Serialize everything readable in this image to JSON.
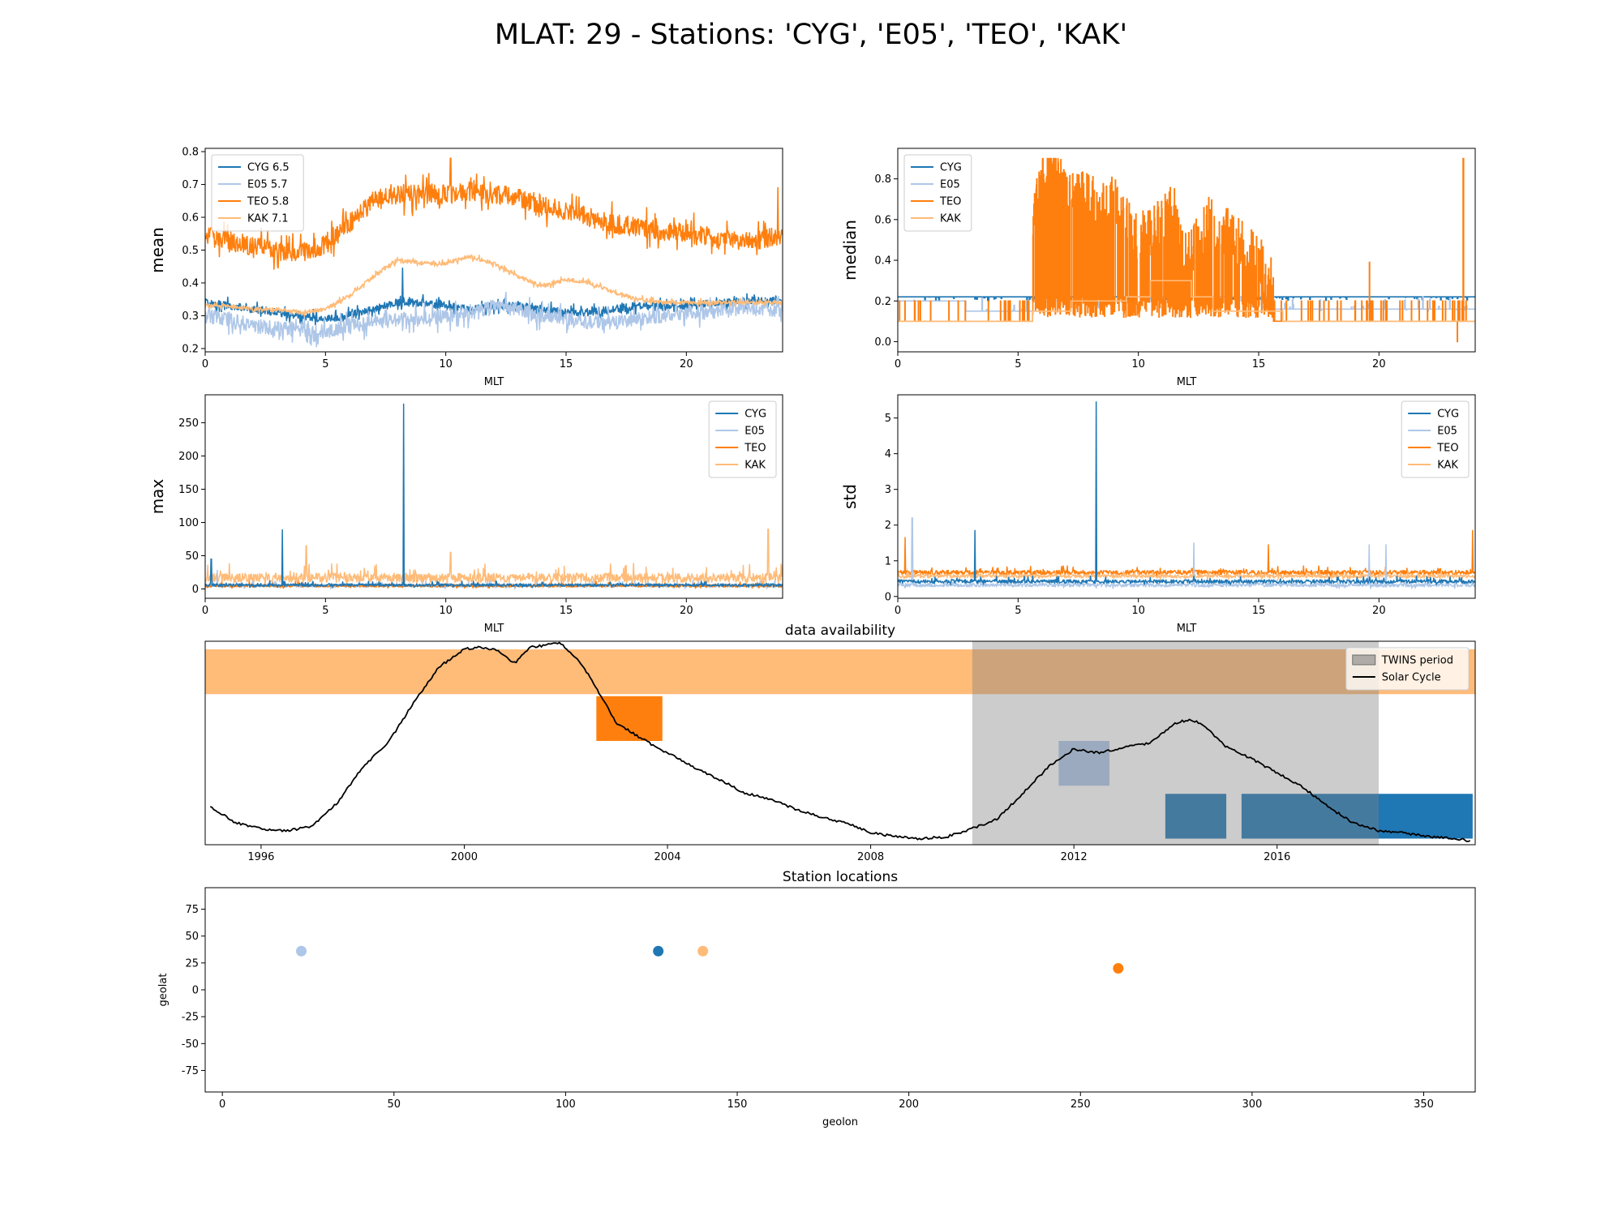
{
  "figure": {
    "title": "MLAT: 29 - Stations: 'CYG', 'E05', 'TEO', 'KAK'",
    "colors": {
      "CYG": "#1f77b4",
      "E05": "#aec7e8",
      "TEO": "#ff7f0e",
      "KAK": "#ffbb78",
      "twins": "#a9a9a9",
      "solar": "#000000"
    }
  },
  "chart_data": [
    {
      "id": "mean",
      "type": "line",
      "xlabel": "MLT",
      "ylabel": "mean",
      "xlim": [
        0,
        24
      ],
      "ylim": [
        0.19,
        0.81
      ],
      "xticks": [
        0,
        5,
        10,
        15,
        20
      ],
      "yticks": [
        0.2,
        0.3,
        0.4,
        0.5,
        0.6,
        0.7,
        0.8
      ],
      "legend_position": "upper-left",
      "legend": [
        "CYG 6.5",
        "E05 5.7",
        "TEO 5.8",
        "KAK 7.1"
      ],
      "series": [
        {
          "name": "CYG 6.5",
          "color": "#1f77b4",
          "x": [
            0,
            1,
            2,
            3,
            4,
            5,
            6,
            7,
            8,
            9,
            10,
            11,
            12,
            13,
            14,
            15,
            16,
            17,
            18,
            19,
            20,
            21,
            22,
            23,
            24
          ],
          "y": [
            0.34,
            0.33,
            0.32,
            0.31,
            0.3,
            0.29,
            0.3,
            0.32,
            0.34,
            0.34,
            0.33,
            0.32,
            0.33,
            0.33,
            0.32,
            0.31,
            0.31,
            0.32,
            0.33,
            0.33,
            0.33,
            0.34,
            0.34,
            0.35,
            0.34
          ],
          "noise": 0.012,
          "spikes": [
            [
              8.2,
              0.445
            ]
          ]
        },
        {
          "name": "E05 5.7",
          "color": "#aec7e8",
          "x": [
            0,
            1,
            2,
            3,
            4,
            5,
            6,
            7,
            8,
            9,
            10,
            11,
            12,
            13,
            14,
            15,
            16,
            17,
            18,
            19,
            20,
            21,
            22,
            23,
            24
          ],
          "y": [
            0.3,
            0.29,
            0.27,
            0.26,
            0.26,
            0.25,
            0.27,
            0.28,
            0.29,
            0.29,
            0.3,
            0.31,
            0.33,
            0.32,
            0.3,
            0.29,
            0.28,
            0.28,
            0.29,
            0.3,
            0.31,
            0.31,
            0.32,
            0.32,
            0.32
          ],
          "noise": 0.022,
          "spikes": []
        },
        {
          "name": "TEO 5.8",
          "color": "#ff7f0e",
          "x": [
            0,
            1,
            2,
            3,
            4,
            5,
            6,
            7,
            8,
            9,
            10,
            11,
            12,
            13,
            14,
            15,
            16,
            17,
            18,
            19,
            20,
            21,
            22,
            23,
            24
          ],
          "y": [
            0.55,
            0.53,
            0.51,
            0.5,
            0.49,
            0.52,
            0.58,
            0.65,
            0.67,
            0.67,
            0.67,
            0.68,
            0.67,
            0.66,
            0.64,
            0.62,
            0.6,
            0.58,
            0.57,
            0.56,
            0.55,
            0.54,
            0.53,
            0.53,
            0.55
          ],
          "noise": 0.03,
          "spikes": [
            [
              10.2,
              0.78
            ],
            [
              23.8,
              0.69
            ]
          ]
        },
        {
          "name": "KAK 7.1",
          "color": "#ffbb78",
          "x": [
            0,
            1,
            2,
            3,
            4,
            5,
            6,
            7,
            8,
            9,
            10,
            11,
            12,
            13,
            14,
            15,
            16,
            17,
            18,
            19,
            20,
            21,
            22,
            23,
            24
          ],
          "y": [
            0.33,
            0.33,
            0.32,
            0.32,
            0.31,
            0.32,
            0.36,
            0.42,
            0.47,
            0.46,
            0.46,
            0.48,
            0.46,
            0.42,
            0.39,
            0.41,
            0.4,
            0.37,
            0.35,
            0.34,
            0.34,
            0.34,
            0.34,
            0.34,
            0.34
          ],
          "noise": 0.006,
          "spikes": []
        }
      ]
    },
    {
      "id": "median",
      "type": "line",
      "xlabel": "MLT",
      "ylabel": "median",
      "xlim": [
        0,
        24
      ],
      "ylim": [
        -0.05,
        0.95
      ],
      "xticks": [
        0,
        5,
        10,
        15,
        20
      ],
      "yticks": [
        0.0,
        0.2,
        0.4,
        0.6,
        0.8
      ],
      "legend_position": "upper-left",
      "legend": [
        "CYG",
        "E05",
        "TEO",
        "KAK"
      ],
      "series": [
        {
          "name": "CYG",
          "color": "#1f77b4",
          "x": [
            0,
            6,
            6,
            15.5,
            15.5,
            24
          ],
          "y": [
            0.22,
            0.22,
            0.22,
            0.22,
            0.22,
            0.22
          ],
          "mode": "flat-jitter",
          "jitter": [
            0.2,
            0.22
          ]
        },
        {
          "name": "E05",
          "color": "#aec7e8",
          "x": [
            0,
            2.8,
            2.8,
            6,
            6,
            9.5,
            9.5,
            15.6,
            15.6,
            24
          ],
          "y": [
            0.2,
            0.2,
            0.15,
            0.15,
            0.2,
            0.2,
            0.22,
            0.22,
            0.16,
            0.16
          ],
          "mode": "flat-jitter",
          "jitter": [
            0.15,
            0.22
          ]
        },
        {
          "name": "TEO",
          "color": "#ff7f0e",
          "x": [
            0,
            4.9,
            5.6,
            5.6,
            6,
            6.5,
            7,
            7.5,
            8,
            8.5,
            9,
            9.5,
            10,
            10.5,
            11,
            11.5,
            12,
            12.5,
            13,
            13.5,
            14,
            14.5,
            15,
            15.5,
            15.6,
            19,
            19.6,
            19.6,
            23.4,
            23.5,
            23.5,
            24
          ],
          "y": [
            0.1,
            0.1,
            0.1,
            0.6,
            0.8,
            0.9,
            0.7,
            0.75,
            0.7,
            0.65,
            0.7,
            0.6,
            0.5,
            0.55,
            0.6,
            0.65,
            0.4,
            0.5,
            0.6,
            0.55,
            0.5,
            0.45,
            0.4,
            0.3,
            0.2,
            0.15,
            0.1,
            0.38,
            0.1,
            0.0,
            0.9,
            0.1
          ],
          "mode": "osc",
          "osc_range": [
            5.6,
            15.6
          ],
          "osc_low": 0.12,
          "spikes": [
            [
              19.6,
              0.39
            ],
            [
              23.5,
              0.9
            ],
            [
              23.25,
              -0.0
            ]
          ]
        },
        {
          "name": "KAK",
          "color": "#ffbb78",
          "x": [
            0,
            5.6,
            5.6,
            9.5,
            9.5,
            11.5,
            11.5,
            13,
            13,
            24
          ],
          "y": [
            0.1,
            0.1,
            0.15,
            0.15,
            0.22,
            0.22,
            0.3,
            0.3,
            0.15,
            0.1
          ],
          "mode": "step",
          "steps": [
            [
              0,
              0.1
            ],
            [
              5.6,
              0.15
            ],
            [
              7.2,
              0.2
            ],
            [
              9.5,
              0.22
            ],
            [
              10.5,
              0.3
            ],
            [
              12.2,
              0.22
            ],
            [
              13.1,
              0.15
            ],
            [
              16.0,
              0.1
            ],
            [
              24,
              0.1
            ]
          ]
        }
      ]
    },
    {
      "id": "max",
      "type": "line",
      "xlabel": "MLT",
      "ylabel": "max",
      "xlim": [
        0,
        24
      ],
      "ylim": [
        -14,
        292
      ],
      "xticks": [
        0,
        5,
        10,
        15,
        20
      ],
      "yticks": [
        0,
        50,
        100,
        150,
        200,
        250
      ],
      "legend_position": "upper-right",
      "legend": [
        "CYG",
        "E05",
        "TEO",
        "KAK"
      ],
      "series": [
        {
          "name": "CYG",
          "color": "#1f77b4",
          "base": 5,
          "noise": 4,
          "spikes": [
            [
              8.25,
              278
            ],
            [
              3.2,
              89
            ],
            [
              0.25,
              45
            ]
          ]
        },
        {
          "name": "E05",
          "color": "#aec7e8",
          "base": 4,
          "noise": 5,
          "spikes": [
            [
              0.5,
              28
            ]
          ]
        },
        {
          "name": "TEO",
          "color": "#ff7f0e",
          "base": 4,
          "noise": 4,
          "spikes": []
        },
        {
          "name": "KAK",
          "color": "#ffbb78",
          "base": 14,
          "noise": 14,
          "spikes": [
            [
              4.2,
              65
            ],
            [
              23.4,
              90
            ],
            [
              10.2,
              55
            ]
          ]
        }
      ]
    },
    {
      "id": "std",
      "type": "line",
      "xlabel": "MLT",
      "ylabel": "std",
      "xlim": [
        0,
        24
      ],
      "ylim": [
        -0.05,
        5.65
      ],
      "xticks": [
        0,
        5,
        10,
        15,
        20
      ],
      "yticks": [
        0,
        1,
        2,
        3,
        4,
        5
      ],
      "legend_position": "upper-right",
      "legend": [
        "CYG",
        "E05",
        "TEO",
        "KAK"
      ],
      "series": [
        {
          "name": "CYG",
          "color": "#1f77b4",
          "base": 0.4,
          "noise": 0.1,
          "spikes": [
            [
              8.25,
              5.45
            ],
            [
              3.2,
              1.85
            ]
          ]
        },
        {
          "name": "E05",
          "color": "#aec7e8",
          "base": 0.3,
          "noise": 0.1,
          "spikes": [
            [
              0.6,
              2.2
            ],
            [
              12.3,
              1.5
            ],
            [
              19.6,
              1.45
            ],
            [
              20.3,
              1.45
            ]
          ]
        },
        {
          "name": "TEO",
          "color": "#ff7f0e",
          "base": 0.65,
          "noise": 0.12,
          "spikes": [
            [
              0.3,
              1.65
            ],
            [
              23.9,
              1.85
            ],
            [
              15.4,
              1.45
            ]
          ]
        },
        {
          "name": "KAK",
          "color": "#ffbb78",
          "base": 0.55,
          "noise": 0.1,
          "spikes": []
        }
      ]
    },
    {
      "id": "availability",
      "type": "bar",
      "title": "data availability",
      "xlim": [
        1994.9,
        2019.9
      ],
      "xticks": [
        1996,
        2000,
        2004,
        2008,
        2012,
        2016
      ],
      "legend_position": "upper-right",
      "legend": [
        "TWINS period",
        "Solar Cycle"
      ],
      "bars": [
        {
          "station": "KAK",
          "color": "#ffbb78",
          "start": 1994.9,
          "end": 2019.9,
          "row": 0
        },
        {
          "station": "TEO",
          "color": "#ff7f0e",
          "start": 2002.6,
          "end": 2003.9,
          "row": 1
        },
        {
          "station": "E05",
          "color": "#aec7e8",
          "start": 2011.7,
          "end": 2012.7,
          "row": 2
        },
        {
          "station": "CYG",
          "color": "#1f77b4",
          "start": 2013.8,
          "end": 2015.0,
          "row": 3
        },
        {
          "station": "CYG",
          "color": "#1f77b4",
          "start": 2015.3,
          "end": 2019.85,
          "row": 3
        }
      ],
      "twins_period": [
        2010.0,
        2018.0
      ],
      "solar_cycle": {
        "x": [
          1995.0,
          1995.5,
          1996.0,
          1996.5,
          1997.0,
          1997.5,
          1998.0,
          1998.5,
          1999.0,
          1999.5,
          2000.0,
          2000.3,
          2000.6,
          2001.0,
          2001.3,
          2001.6,
          2001.9,
          2002.2,
          2002.5,
          2003.0,
          2003.5,
          2004.0,
          2004.5,
          2005.0,
          2005.5,
          2006.0,
          2006.5,
          2007.0,
          2007.5,
          2008.0,
          2008.5,
          2009.0,
          2009.5,
          2010.0,
          2010.5,
          2011.0,
          2011.5,
          2012.0,
          2012.5,
          2013.0,
          2013.5,
          2014.0,
          2014.3,
          2014.6,
          2015.0,
          2015.5,
          2016.0,
          2016.5,
          2017.0,
          2017.5,
          2018.0,
          2018.5,
          2019.0,
          2019.5,
          2019.8
        ],
        "y": [
          0.18,
          0.1,
          0.07,
          0.06,
          0.08,
          0.2,
          0.38,
          0.5,
          0.7,
          0.88,
          0.97,
          0.98,
          0.97,
          0.9,
          0.98,
          0.99,
          1.0,
          0.93,
          0.82,
          0.6,
          0.52,
          0.45,
          0.38,
          0.32,
          0.25,
          0.22,
          0.17,
          0.13,
          0.1,
          0.05,
          0.03,
          0.02,
          0.03,
          0.07,
          0.12,
          0.25,
          0.38,
          0.47,
          0.45,
          0.48,
          0.5,
          0.6,
          0.62,
          0.58,
          0.48,
          0.42,
          0.35,
          0.28,
          0.18,
          0.1,
          0.06,
          0.05,
          0.03,
          0.02,
          0.01
        ]
      }
    },
    {
      "id": "locations",
      "type": "scatter",
      "title": "Station locations",
      "xlabel": "geolon",
      "ylabel": "geolat",
      "xlim": [
        -5,
        365
      ],
      "ylim": [
        -95,
        95
      ],
      "xticks": [
        0,
        50,
        100,
        150,
        200,
        250,
        300,
        350
      ],
      "yticks": [
        75,
        50,
        25,
        0,
        -25,
        -50,
        -75
      ],
      "points": [
        {
          "name": "E05",
          "x": 23,
          "y": 36,
          "color": "#aec7e8"
        },
        {
          "name": "CYG",
          "x": 127,
          "y": 36,
          "color": "#1f77b4"
        },
        {
          "name": "KAK",
          "x": 140,
          "y": 36,
          "color": "#ffbb78"
        },
        {
          "name": "TEO",
          "x": 261,
          "y": 20,
          "color": "#ff7f0e"
        }
      ]
    }
  ]
}
